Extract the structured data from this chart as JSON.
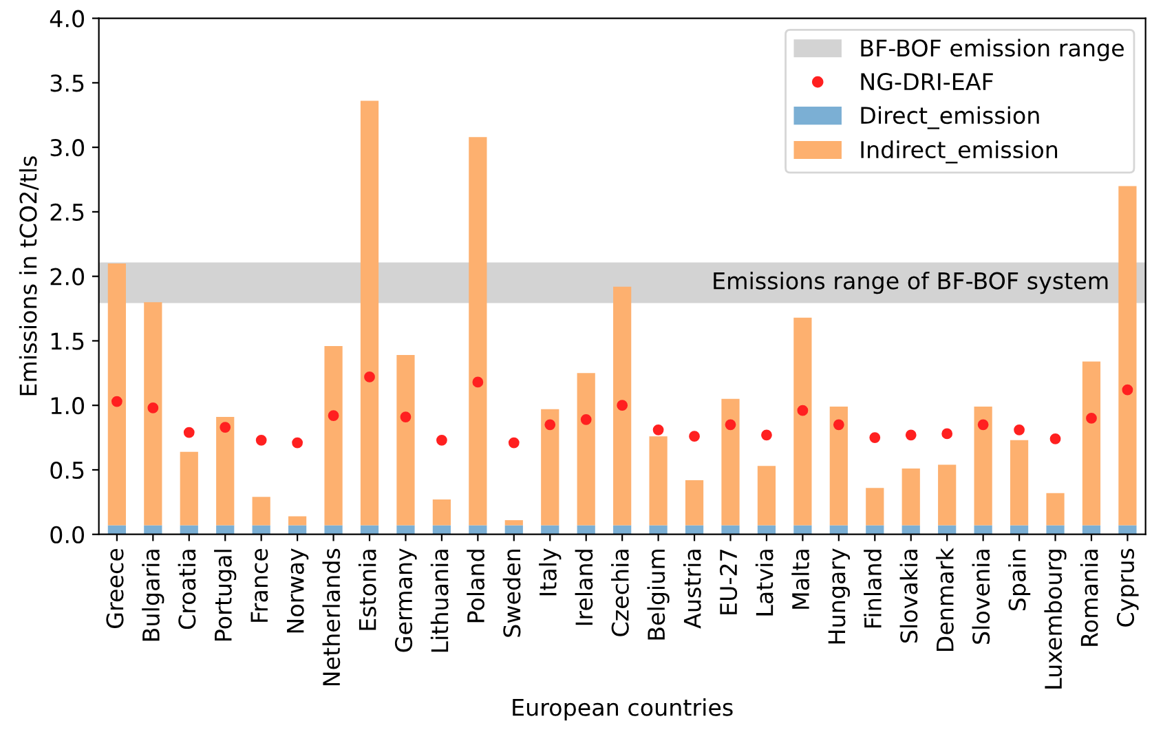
{
  "chart_data": {
    "type": "bar",
    "stacked": true,
    "xlabel": "European countries",
    "ylabel": "Emissions in tCO2/tls",
    "categories": [
      "Greece",
      "Bulgaria",
      "Croatia",
      "Portugal",
      "France",
      "Norway",
      "Netherlands",
      "Estonia",
      "Germany",
      "Lithuania",
      "Poland",
      "Sweden",
      "Italy",
      "Ireland",
      "Czechia",
      "Belgium",
      "Austria",
      "EU-27",
      "Latvia",
      "Malta",
      "Hungary",
      "Finland",
      "Slovakia",
      "Denmark",
      "Slovenia",
      "Spain",
      "Luxembourg",
      "Romania",
      "Cyprus"
    ],
    "series": [
      {
        "name": "Direct_emission",
        "color": "#7bafd4",
        "values": [
          0.07,
          0.07,
          0.07,
          0.07,
          0.07,
          0.07,
          0.07,
          0.07,
          0.07,
          0.07,
          0.07,
          0.07,
          0.07,
          0.07,
          0.07,
          0.07,
          0.07,
          0.07,
          0.07,
          0.07,
          0.07,
          0.07,
          0.07,
          0.07,
          0.07,
          0.07,
          0.07,
          0.07,
          0.07
        ]
      },
      {
        "name": "Indirect_emission",
        "color": "#fdb06f",
        "values": [
          2.03,
          1.73,
          0.57,
          0.84,
          0.22,
          0.07,
          1.39,
          3.29,
          1.32,
          0.2,
          3.01,
          0.04,
          0.9,
          1.18,
          1.85,
          0.69,
          0.35,
          0.98,
          0.46,
          1.61,
          0.92,
          0.29,
          0.44,
          0.47,
          0.92,
          0.66,
          0.25,
          1.27,
          2.63
        ]
      },
      {
        "name": "NG-DRI-EAF",
        "type": "scatter",
        "color": "#ff2020",
        "marker": "circle",
        "values": [
          1.03,
          0.98,
          0.79,
          0.83,
          0.73,
          0.71,
          0.92,
          1.22,
          0.91,
          0.73,
          1.18,
          0.71,
          0.85,
          0.89,
          1.0,
          0.81,
          0.76,
          0.85,
          0.77,
          0.96,
          0.85,
          0.75,
          0.77,
          0.78,
          0.85,
          0.81,
          0.74,
          0.9,
          1.12
        ]
      }
    ],
    "bands": [
      {
        "axis": "y",
        "from": 1.8,
        "to": 2.1,
        "label": "BF-BOF emission range",
        "color": "#d3d3d3"
      }
    ],
    "annotations": [
      "Emissions range of BF-BOF system"
    ],
    "ylim": [
      0,
      4.0
    ],
    "yticks": [
      {
        "value": 0,
        "label": "0.0"
      },
      {
        "value": 0.5,
        "label": "0.5"
      },
      {
        "value": 1,
        "label": "1.0"
      },
      {
        "value": 1.5,
        "label": "1.5"
      },
      {
        "value": 2,
        "label": "2.0"
      },
      {
        "value": 2.5,
        "label": "2.5"
      },
      {
        "value": 3,
        "label": "3.0"
      },
      {
        "value": 3.5,
        "label": "3.5"
      },
      {
        "value": 4,
        "label": "4.0"
      }
    ],
    "legend": "top right",
    "grid": false
  }
}
